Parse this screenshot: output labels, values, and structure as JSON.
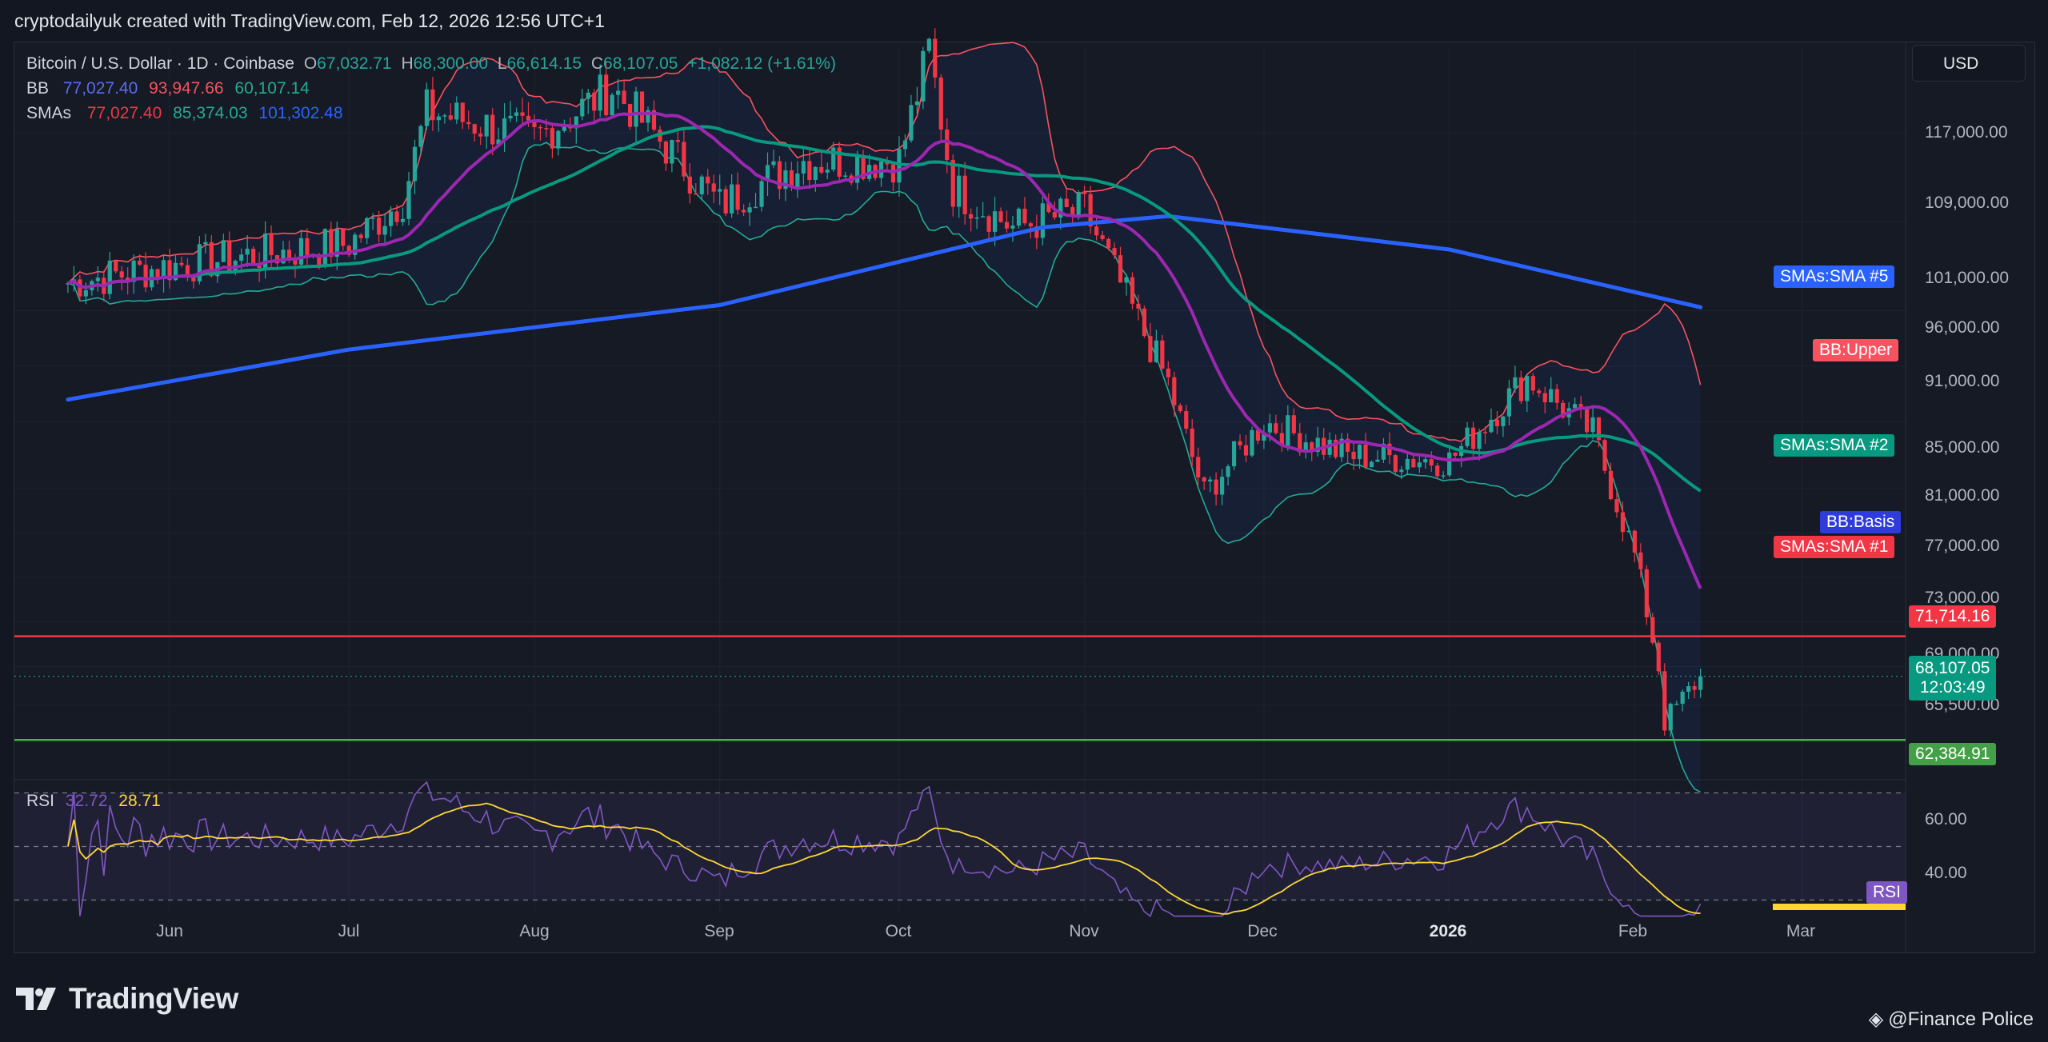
{
  "header": {
    "caption": "cryptodailyuk created with TradingView.com, Feb 12, 2026 12:56 UTC+1"
  },
  "legend": {
    "symbol": "Bitcoin / U.S. Dollar · 1D · Coinbase",
    "open_label": "O",
    "open": "67,032.71",
    "high_label": "H",
    "high": "68,300.00",
    "low_label": "L",
    "low": "66,614.15",
    "close_label": "C",
    "close": "68,107.05",
    "change": "+1,082.12 (+1.61%)",
    "bb_label": "BB",
    "bb_basis": "77,027.40",
    "bb_upper": "93,947.66",
    "bb_lower": "60,107.14",
    "sma_label": "SMAs",
    "sma1": "77,027.40",
    "sma2": "85,374.03",
    "sma5": "101,302.48"
  },
  "toolbar": {
    "currency": "USD"
  },
  "price_axis": [
    "117,000.00",
    "109,000.00",
    "101,000.00",
    "96,000.00",
    "91,000.00",
    "85,000.00",
    "81,000.00",
    "77,000.00",
    "73,000.00",
    "69,000.00",
    "65,500.00"
  ],
  "tags": {
    "sma5": "SMAs:SMA #5",
    "bb_upper": "BB:Upper",
    "sma2": "SMAs:SMA #2",
    "bb_basis": "BB:Basis",
    "sma1": "SMAs:SMA #1",
    "resistance": "71,714.16",
    "last_price": "68,107.05",
    "countdown": "12:03:49",
    "support": "62,384.91"
  },
  "rsi": {
    "label": "RSI",
    "value": "32.72",
    "ma": "28.71",
    "tag": "RSI",
    "axis": [
      "60.00",
      "40.00"
    ]
  },
  "time_axis": [
    "Jun",
    "Jul",
    "Aug",
    "Sep",
    "Oct",
    "Nov",
    "Dec",
    "2026",
    "Feb",
    "Mar"
  ],
  "footer": {
    "brand": "TradingView",
    "credit": "@Finance Police"
  },
  "colors": {
    "up": "#26a69a",
    "down": "#f23645",
    "sma1": "#9c27b0",
    "sma2": "#089981",
    "sma5": "#2962ff",
    "bb_upper": "#f7525f",
    "bb_lower": "#22ab94",
    "rsi": "#7e57c2",
    "rsi_ma": "#fdd835",
    "resistance": "#f23645",
    "support": "#4caf50"
  },
  "chart_data": {
    "type": "line",
    "title": "Bitcoin / U.S. Dollar · 1D · Coinbase",
    "x": [
      "2025-05-15",
      "2025-06-01",
      "2025-06-15",
      "2025-07-01",
      "2025-07-10",
      "2025-07-14",
      "2025-08-01",
      "2025-08-14",
      "2025-09-01",
      "2025-09-15",
      "2025-10-01",
      "2025-10-06",
      "2025-10-10",
      "2025-10-20",
      "2025-11-01",
      "2025-11-15",
      "2025-11-21",
      "2025-12-01",
      "2025-12-15",
      "2026-01-01",
      "2026-01-14",
      "2026-01-25",
      "2026-02-01",
      "2026-02-05",
      "2026-02-06",
      "2026-02-12"
    ],
    "series": [
      {
        "name": "Bitcoin / U.S. Dollar",
        "values": [
          103500,
          105000,
          106000,
          107000,
          111000,
          119000,
          116500,
          121000,
          110500,
          114500,
          114500,
          124500,
          112000,
          108500,
          110000,
          94500,
          84500,
          91000,
          88000,
          87500,
          95000,
          90000,
          79000,
          69000,
          64000,
          68107.05
        ]
      }
    ],
    "sma_5_path": [
      [
        "2025-05-15",
        93000
      ],
      [
        "2025-07-01",
        97500
      ],
      [
        "2025-09-01",
        101500
      ],
      [
        "2025-10-25",
        108500
      ],
      [
        "2025-11-15",
        109500
      ],
      [
        "2026-01-01",
        106500
      ],
      [
        "2026-02-12",
        101302.48
      ]
    ],
    "levels": {
      "resistance": 71714.16,
      "support": 62384.91
    },
    "ylim": [
      60000,
      125500
    ],
    "ylabel": "USD",
    "xlabel": "",
    "rsi_range": [
      30,
      70
    ],
    "grid": false,
    "legend": "top-left"
  }
}
